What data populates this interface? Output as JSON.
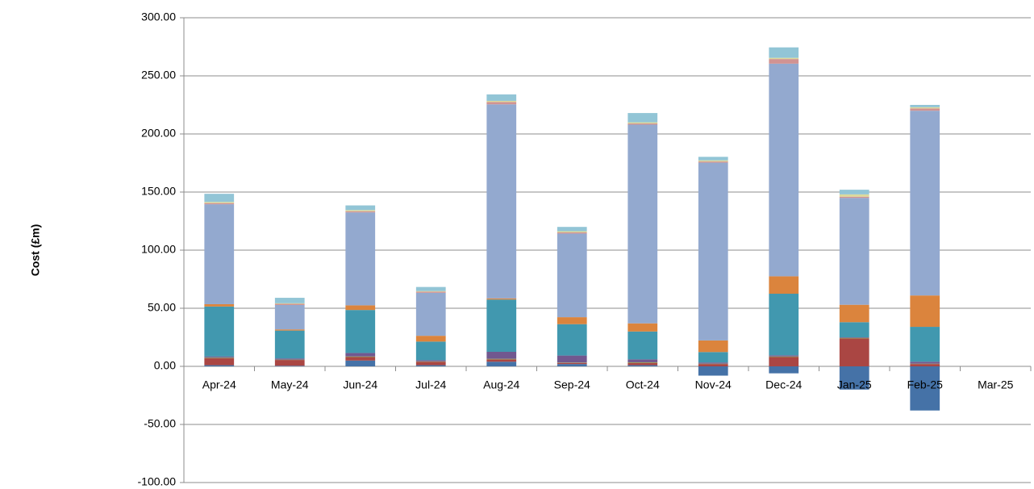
{
  "chart_data": {
    "type": "bar",
    "stacked": true,
    "y_label": "Cost (£m)",
    "categories": [
      "Apr-24",
      "May-24",
      "Jun-24",
      "Jul-24",
      "Aug-24",
      "Sep-24",
      "Oct-24",
      "Nov-24",
      "Dec-24",
      "Jan-25",
      "Feb-25",
      "Mar-25"
    ],
    "series": [
      {
        "color": "#4572a7",
        "values": [
          1,
          0.5,
          5,
          1,
          4,
          2,
          1,
          -8,
          -6,
          -20,
          -38,
          null
        ]
      },
      {
        "color": "#aa4643",
        "values": [
          6,
          5,
          3,
          3,
          2,
          1,
          2,
          2,
          8,
          24,
          2,
          null
        ]
      },
      {
        "color": "#89a54e",
        "values": [
          0.5,
          0.3,
          0.5,
          0.3,
          0.5,
          0.3,
          0.5,
          0.3,
          0.5,
          0.5,
          0.3,
          null
        ]
      },
      {
        "color": "#71588f",
        "values": [
          1,
          1,
          3,
          1,
          6,
          6,
          2.5,
          1,
          1,
          0.5,
          1.7,
          null
        ]
      },
      {
        "color": "#4198af",
        "values": [
          43,
          24,
          37,
          16,
          45,
          27,
          24,
          9,
          53,
          13,
          30,
          null
        ]
      },
      {
        "color": "#db843d",
        "values": [
          2,
          1,
          4,
          5,
          1,
          6,
          7,
          10,
          15,
          15,
          27,
          null
        ]
      },
      {
        "color": "#93a9cf",
        "values": [
          86,
          21,
          80,
          37,
          167,
          72,
          171,
          153,
          183,
          92,
          159,
          null
        ]
      },
      {
        "color": "#d19392",
        "values": [
          1,
          1,
          1,
          1,
          2,
          1,
          1,
          1,
          4,
          1,
          2,
          null
        ]
      },
      {
        "color": "#dbd99a",
        "values": [
          1,
          0.5,
          1,
          0.5,
          1,
          1,
          1,
          1,
          1,
          2,
          1,
          null
        ]
      },
      {
        "color": "#92c5d6",
        "values": [
          7,
          4.7,
          4,
          3.5,
          5.5,
          3.7,
          8,
          3,
          9,
          4,
          2,
          null
        ]
      }
    ],
    "ylim": [
      -100,
      300
    ],
    "yticks": [
      {
        "value": -100,
        "label": "-100.00"
      },
      {
        "value": -50,
        "label": "-50.00"
      },
      {
        "value": 0,
        "label": "0.00"
      },
      {
        "value": 50,
        "label": "50.00"
      },
      {
        "value": 100,
        "label": "100.00"
      },
      {
        "value": 150,
        "label": "150.00"
      },
      {
        "value": 200,
        "label": "200.00"
      },
      {
        "value": 250,
        "label": "250.00"
      },
      {
        "value": 300,
        "label": "300.00"
      }
    ],
    "grid": true
  }
}
